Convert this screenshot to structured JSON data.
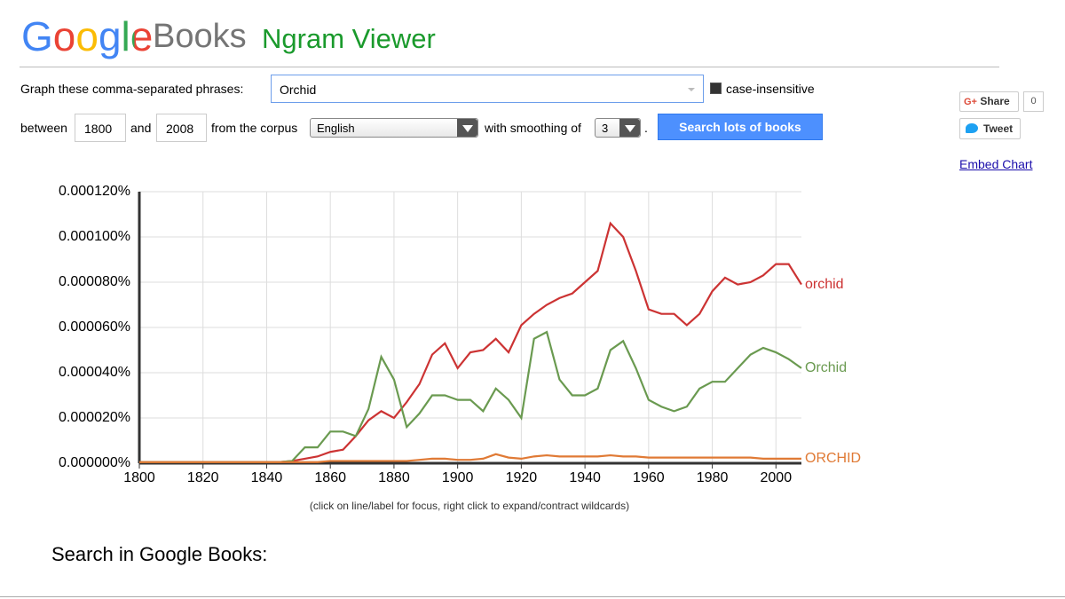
{
  "header": {
    "logo_google": "Google",
    "logo_books": "Books",
    "product": "Ngram Viewer"
  },
  "form": {
    "phrases_label": "Graph these comma-separated phrases:",
    "phrases": "Orchid",
    "case_insensitive": "case-insensitive",
    "between": "between",
    "start_year": "1800",
    "and": "and",
    "end_year": "2008",
    "corpus_label": "from the corpus",
    "corpus": "English",
    "smoothing_label": "with smoothing of",
    "smoothing": "3",
    "period": ".",
    "search_button": "Search lots of books"
  },
  "share": {
    "g_plus": "G+",
    "share": "Share",
    "share_count": "0",
    "tweet": "Tweet",
    "embed": "Embed Chart"
  },
  "chart_data": {
    "type": "line",
    "note": "(click on line/label for focus, right click to expand/contract wildcards)",
    "x": [
      1800,
      1804,
      1808,
      1812,
      1816,
      1820,
      1824,
      1828,
      1832,
      1836,
      1840,
      1844,
      1848,
      1852,
      1856,
      1860,
      1864,
      1868,
      1872,
      1876,
      1880,
      1884,
      1888,
      1892,
      1896,
      1900,
      1904,
      1908,
      1912,
      1916,
      1920,
      1924,
      1928,
      1932,
      1936,
      1940,
      1944,
      1948,
      1952,
      1956,
      1960,
      1964,
      1968,
      1972,
      1976,
      1980,
      1984,
      1988,
      1992,
      1996,
      2000,
      2004,
      2008
    ],
    "series": [
      {
        "name": "orchid",
        "color": "#cc3333",
        "values": [
          5e-07,
          5e-07,
          5e-07,
          5e-07,
          5e-07,
          5e-07,
          5e-07,
          5e-07,
          5e-07,
          5e-07,
          5e-07,
          5e-07,
          1e-06,
          2e-06,
          3e-06,
          5e-06,
          6e-06,
          1.2e-05,
          1.9e-05,
          2.3e-05,
          2e-05,
          2.7e-05,
          3.5e-05,
          4.8e-05,
          5.3e-05,
          4.2e-05,
          4.9e-05,
          5e-05,
          5.5e-05,
          4.9e-05,
          6.1e-05,
          6.6e-05,
          7e-05,
          7.3e-05,
          7.5e-05,
          8e-05,
          8.5e-05,
          0.000106,
          0.0001,
          8.5e-05,
          6.8e-05,
          6.6e-05,
          6.6e-05,
          6.1e-05,
          6.6e-05,
          7.6e-05,
          8.2e-05,
          7.9e-05,
          8e-05,
          8.3e-05,
          8.8e-05,
          8.8e-05,
          7.9e-05
        ]
      },
      {
        "name": "Orchid",
        "color": "#6a9a50",
        "values": [
          5e-07,
          5e-07,
          5e-07,
          5e-07,
          5e-07,
          5e-07,
          5e-07,
          5e-07,
          5e-07,
          5e-07,
          5e-07,
          5e-07,
          1e-06,
          7e-06,
          7e-06,
          1.4e-05,
          1.4e-05,
          1.2e-05,
          2.4e-05,
          4.7e-05,
          3.7e-05,
          1.6e-05,
          2.2e-05,
          3e-05,
          3e-05,
          2.8e-05,
          2.8e-05,
          2.3e-05,
          3.3e-05,
          2.8e-05,
          2e-05,
          5.5e-05,
          5.8e-05,
          3.7e-05,
          3e-05,
          3e-05,
          3.3e-05,
          5e-05,
          5.4e-05,
          4.2e-05,
          2.8e-05,
          2.5e-05,
          2.3e-05,
          2.5e-05,
          3.3e-05,
          3.6e-05,
          3.6e-05,
          4.2e-05,
          4.8e-05,
          5.1e-05,
          4.9e-05,
          4.6e-05,
          4.2e-05
        ]
      },
      {
        "name": "ORCHID",
        "color": "#e07a35",
        "values": [
          5e-07,
          5e-07,
          5e-07,
          5e-07,
          5e-07,
          5e-07,
          5e-07,
          5e-07,
          5e-07,
          5e-07,
          5e-07,
          5e-07,
          5e-07,
          5e-07,
          5e-07,
          1e-06,
          1e-06,
          1e-06,
          1e-06,
          1e-06,
          1e-06,
          1e-06,
          1.5e-06,
          2e-06,
          2e-06,
          1.5e-06,
          1.5e-06,
          2e-06,
          4e-06,
          2.5e-06,
          2e-06,
          3e-06,
          3.5e-06,
          3e-06,
          3e-06,
          3e-06,
          3e-06,
          3.5e-06,
          3e-06,
          3e-06,
          2.5e-06,
          2.5e-06,
          2.5e-06,
          2.5e-06,
          2.5e-06,
          2.5e-06,
          2.5e-06,
          2.5e-06,
          2.5e-06,
          2e-06,
          2e-06,
          2e-06,
          2e-06
        ]
      }
    ],
    "xlim": [
      1800,
      2008
    ],
    "xticks": [
      1800,
      1820,
      1840,
      1860,
      1880,
      1900,
      1920,
      1940,
      1960,
      1980,
      2000
    ],
    "ylim": [
      0,
      0.00012
    ],
    "yticks": [
      {
        "value": 0,
        "label": "0.000000%"
      },
      {
        "value": 2e-05,
        "label": "0.000020%"
      },
      {
        "value": 4e-05,
        "label": "0.000040%"
      },
      {
        "value": 6e-05,
        "label": "0.000060%"
      },
      {
        "value": 8e-05,
        "label": "0.000080%"
      },
      {
        "value": 0.0001,
        "label": "0.000100%"
      },
      {
        "value": 0.00012,
        "label": "0.000120%"
      }
    ],
    "grid": true
  },
  "footer": {
    "search_heading": "Search in Google Books:"
  }
}
